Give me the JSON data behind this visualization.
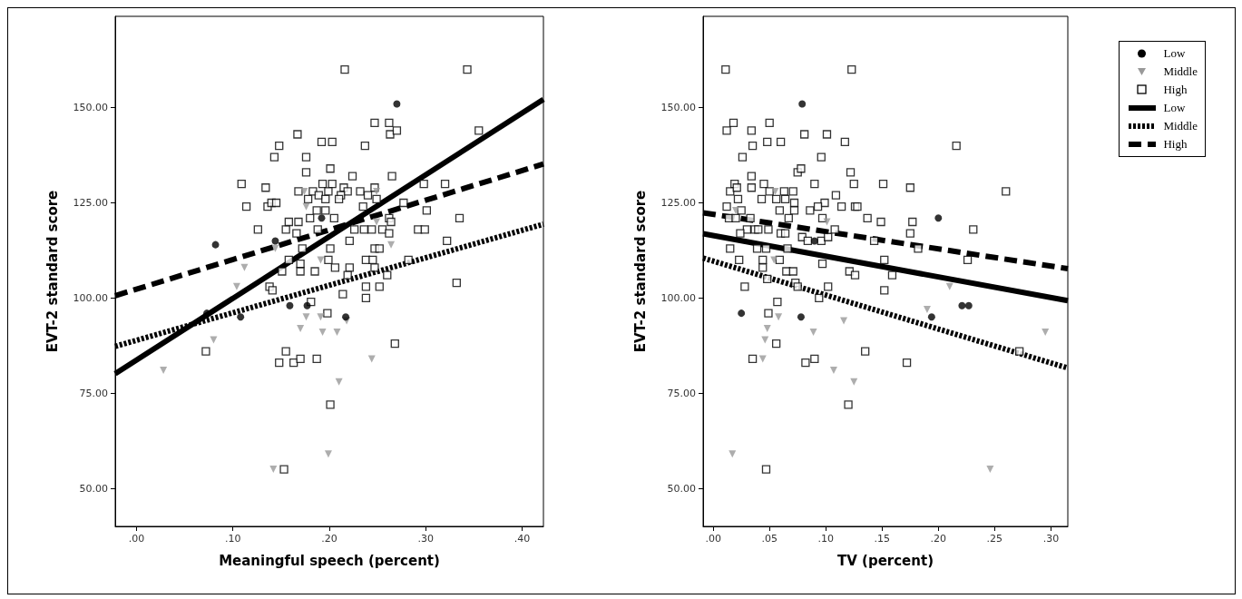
{
  "chart_data": [
    {
      "type": "scatter",
      "xlabel": "Meaningful speech (percent)",
      "ylabel": "EVT-2 standard score",
      "xlim": [
        -0.022,
        0.422
      ],
      "ylim": [
        40,
        174
      ],
      "xticks": [
        {
          "value": 0,
          "label": ".00"
        },
        {
          "value": 0.1,
          "label": ".10"
        },
        {
          "value": 0.2,
          "label": ".20"
        },
        {
          "value": 0.3,
          "label": ".30"
        },
        {
          "value": 0.4,
          "label": ".40"
        }
      ],
      "yticks": [
        {
          "value": 50,
          "label": "50.00"
        },
        {
          "value": 75,
          "label": "75.00"
        },
        {
          "value": 100,
          "label": "100.00"
        },
        {
          "value": 125,
          "label": "125.00"
        },
        {
          "value": 150,
          "label": "150.00"
        }
      ],
      "legend": false,
      "series": [
        {
          "color": "#000000",
          "marker": "circle",
          "x": [
            0.082,
            0.144,
            0.108,
            0.159,
            0.177,
            0.192,
            0.217,
            0.27,
            0.073
          ],
          "values": [
            114,
            115,
            95,
            98,
            98,
            121,
            95,
            151,
            96
          ]
        },
        {
          "color": "#999999",
          "marker": "triangle",
          "x": [
            0.028,
            0.08,
            0.104,
            0.112,
            0.144,
            0.176,
            0.17,
            0.191,
            0.193,
            0.208,
            0.218,
            0.21,
            0.244,
            0.264,
            0.199,
            0.142,
            0.176,
            0.174,
            0.191,
            0.249,
            0.249
          ],
          "values": [
            81,
            89,
            103,
            108,
            113,
            95,
            92,
            95,
            91,
            91,
            94,
            78,
            84,
            114,
            59,
            55,
            124,
            128,
            110,
            128,
            120
          ]
        },
        {
          "color": "#000000",
          "marker": "square",
          "x": [
            0.216,
            0.343,
            0.355,
            0.247,
            0.262,
            0.263,
            0.27,
            0.167,
            0.148,
            0.143,
            0.192,
            0.203,
            0.237,
            0.176,
            0.176,
            0.201,
            0.224,
            0.265,
            0.109,
            0.134,
            0.193,
            0.203,
            0.215,
            0.247,
            0.168,
            0.183,
            0.199,
            0.219,
            0.232,
            0.24,
            0.212,
            0.189,
            0.178,
            0.196,
            0.21,
            0.249,
            0.298,
            0.32,
            0.114,
            0.136,
            0.14,
            0.145,
            0.187,
            0.196,
            0.235,
            0.277,
            0.301,
            0.18,
            0.205,
            0.262,
            0.335,
            0.126,
            0.155,
            0.188,
            0.226,
            0.236,
            0.244,
            0.255,
            0.292,
            0.299,
            0.158,
            0.168,
            0.264,
            0.166,
            0.262,
            0.221,
            0.322,
            0.172,
            0.201,
            0.247,
            0.252,
            0.158,
            0.17,
            0.199,
            0.238,
            0.245,
            0.282,
            0.151,
            0.17,
            0.185,
            0.206,
            0.221,
            0.247,
            0.219,
            0.26,
            0.138,
            0.141,
            0.238,
            0.252,
            0.332,
            0.214,
            0.238,
            0.181,
            0.198,
            0.268,
            0.072,
            0.155,
            0.148,
            0.163,
            0.17,
            0.187,
            0.201,
            0.153
          ],
          "values": [
            160,
            160,
            144,
            146,
            146,
            143,
            144,
            143,
            140,
            137,
            141,
            141,
            140,
            137,
            133,
            134,
            132,
            132,
            130,
            129,
            130,
            130,
            129,
            129,
            128,
            128,
            128,
            128,
            128,
            127,
            127,
            127,
            126,
            126,
            126,
            126,
            130,
            130,
            124,
            124,
            125,
            125,
            123,
            123,
            124,
            125,
            123,
            121,
            121,
            121,
            121,
            118,
            118,
            118,
            118,
            118,
            118,
            118,
            118,
            118,
            120,
            120,
            120,
            117,
            117,
            115,
            115,
            113,
            113,
            113,
            113,
            110,
            109,
            110,
            110,
            110,
            110,
            107,
            107,
            107,
            108,
            108,
            108,
            106,
            106,
            103,
            102,
            103,
            103,
            104,
            101,
            100,
            99,
            96,
            88,
            86,
            86,
            83,
            83,
            84,
            84,
            72,
            55
          ]
        },
        {
          "type": "line",
          "color": "#000000",
          "line_style": "solid",
          "x": [
            -0.022,
            0.422
          ],
          "values": [
            80.1,
            152.2
          ]
        },
        {
          "type": "line",
          "color": "#000000",
          "line_style": "dotted",
          "x": [
            -0.022,
            0.422
          ],
          "values": [
            87.3,
            119.4
          ]
        },
        {
          "type": "line",
          "color": "#000000",
          "line_style": "dashed",
          "x": [
            -0.022,
            0.422
          ],
          "values": [
            100.6,
            135.2
          ]
        }
      ]
    },
    {
      "type": "scatter",
      "xlabel": "TV (percent)",
      "ylabel": "EVT-2 standard score",
      "xlim": [
        -0.009,
        0.315
      ],
      "ylim": [
        40,
        174
      ],
      "xticks": [
        {
          "value": 0,
          "label": ".00"
        },
        {
          "value": 0.05,
          "label": ".05"
        },
        {
          "value": 0.1,
          "label": ".10"
        },
        {
          "value": 0.15,
          "label": ".15"
        },
        {
          "value": 0.2,
          "label": ".20"
        },
        {
          "value": 0.25,
          "label": ".25"
        },
        {
          "value": 0.3,
          "label": ".30"
        }
      ],
      "yticks": [
        {
          "value": 50,
          "label": "50.00"
        },
        {
          "value": 75,
          "label": "75.00"
        },
        {
          "value": 100,
          "label": "100.00"
        },
        {
          "value": 125,
          "label": "125.00"
        },
        {
          "value": 150,
          "label": "150.00"
        }
      ],
      "legend": "top right",
      "series": [
        {
          "name": "Low",
          "color": "#000000",
          "marker": "circle",
          "x": [
            0.079,
            0.025,
            0.078,
            0.09,
            0.2,
            0.194,
            0.221,
            0.227
          ],
          "values": [
            151,
            96,
            95,
            115,
            121,
            95,
            98,
            98
          ]
        },
        {
          "name": "Middle",
          "color": "#999999",
          "marker": "triangle",
          "x": [
            0.017,
            0.058,
            0.048,
            0.046,
            0.044,
            0.089,
            0.107,
            0.116,
            0.125,
            0.054,
            0.055,
            0.02,
            0.101,
            0.21,
            0.19,
            0.295,
            0.246
          ],
          "values": [
            59,
            95,
            92,
            89,
            84,
            91,
            81,
            94,
            78,
            110,
            128,
            123,
            120,
            103,
            97,
            91,
            55
          ]
        },
        {
          "name": "High",
          "color": "#000000",
          "marker": "square",
          "x": [
            0.011,
            0.123,
            0.018,
            0.012,
            0.034,
            0.05,
            0.035,
            0.048,
            0.06,
            0.081,
            0.101,
            0.117,
            0.026,
            0.096,
            0.075,
            0.078,
            0.122,
            0.034,
            0.034,
            0.019,
            0.015,
            0.021,
            0.022,
            0.045,
            0.043,
            0.05,
            0.056,
            0.063,
            0.071,
            0.064,
            0.072,
            0.09,
            0.109,
            0.099,
            0.012,
            0.025,
            0.059,
            0.072,
            0.086,
            0.093,
            0.114,
            0.125,
            0.126,
            0.097,
            0.014,
            0.02,
            0.033,
            0.067,
            0.03,
            0.037,
            0.04,
            0.049,
            0.06,
            0.064,
            0.024,
            0.108,
            0.079,
            0.084,
            0.096,
            0.102,
            0.015,
            0.039,
            0.047,
            0.066,
            0.023,
            0.044,
            0.059,
            0.044,
            0.065,
            0.071,
            0.097,
            0.121,
            0.126,
            0.048,
            0.028,
            0.073,
            0.075,
            0.102,
            0.094,
            0.057,
            0.049,
            0.056,
            0.035,
            0.082,
            0.09,
            0.12,
            0.047,
            0.216,
            0.151,
            0.175,
            0.26,
            0.128,
            0.137,
            0.149,
            0.177,
            0.175,
            0.231,
            0.143,
            0.182,
            0.226,
            0.152,
            0.159,
            0.152,
            0.272,
            0.135,
            0.172
          ],
          "values": [
            160,
            160,
            146,
            144,
            144,
            146,
            140,
            141,
            141,
            143,
            143,
            141,
            137,
            137,
            133,
            134,
            133,
            132,
            129,
            130,
            128,
            129,
            126,
            130,
            126,
            128,
            126,
            128,
            128,
            126,
            125,
            130,
            127,
            125,
            124,
            123,
            123,
            123,
            123,
            124,
            124,
            130,
            124,
            121,
            121,
            121,
            121,
            121,
            118,
            118,
            118,
            118,
            117,
            117,
            117,
            118,
            116,
            115,
            115,
            116,
            113,
            113,
            113,
            113,
            110,
            110,
            110,
            108,
            107,
            107,
            109,
            107,
            106,
            105,
            103,
            104,
            103,
            103,
            100,
            99,
            96,
            88,
            84,
            83,
            84,
            72,
            55,
            140,
            130,
            129,
            128,
            124,
            121,
            120,
            120,
            117,
            118,
            115,
            113,
            110,
            110,
            106,
            102,
            86,
            86,
            83
          ]
        },
        {
          "type": "line",
          "name": "Low",
          "color": "#000000",
          "line_style": "solid",
          "x": [
            -0.009,
            0.315
          ],
          "values": [
            116.9,
            99.3
          ]
        },
        {
          "type": "line",
          "name": "Middle",
          "color": "#000000",
          "line_style": "dotted",
          "x": [
            -0.009,
            0.315
          ],
          "values": [
            110.5,
            81.6
          ]
        },
        {
          "type": "line",
          "name": "High",
          "color": "#000000",
          "line_style": "dashed",
          "x": [
            -0.009,
            0.315
          ],
          "values": [
            122.4,
            107.7
          ]
        }
      ]
    }
  ]
}
